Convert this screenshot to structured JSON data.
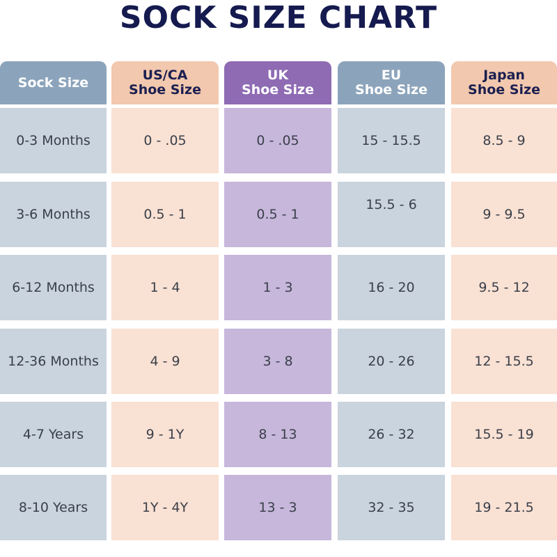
{
  "title": "SOCK SIZE CHART",
  "colors": {
    "title": "#151a4f",
    "blue_header": "#8ca4bb",
    "blue_cell": "#c9d4de",
    "peach_header": "#f2c8ae",
    "peach_cell": "#f9e1d3",
    "purple_header": "#8e6bb3",
    "purple_cell": "#c7b7db"
  },
  "headers": [
    {
      "line1": "Sock Size",
      "line2": ""
    },
    {
      "line1": "US/CA",
      "line2": "Shoe Size"
    },
    {
      "line1": "UK",
      "line2": "Shoe Size"
    },
    {
      "line1": "EU",
      "line2": "Shoe Size"
    },
    {
      "line1": "Japan",
      "line2": "Shoe Size"
    }
  ],
  "rows": [
    [
      "0-3 Months",
      "0 - .05",
      "0 - .05",
      "15 - 15.5",
      "8.5 - 9"
    ],
    [
      "3-6 Months",
      "0.5 - 1",
      "0.5 - 1",
      "15.5 - 6",
      "9 - 9.5"
    ],
    [
      "6-12 Months",
      "1 - 4",
      "1 - 3",
      "16 - 20",
      "9.5 - 12"
    ],
    [
      "12-36 Months",
      "4 - 9",
      "3 - 8",
      "20 - 26",
      "12 - 15.5"
    ],
    [
      "4-7 Years",
      "9 - 1Y",
      "8 - 13",
      "26 - 32",
      "15.5 - 19"
    ],
    [
      "8-10 Years",
      "1Y - 4Y",
      "13 - 3",
      "32 - 35",
      "19 - 21.5"
    ]
  ]
}
